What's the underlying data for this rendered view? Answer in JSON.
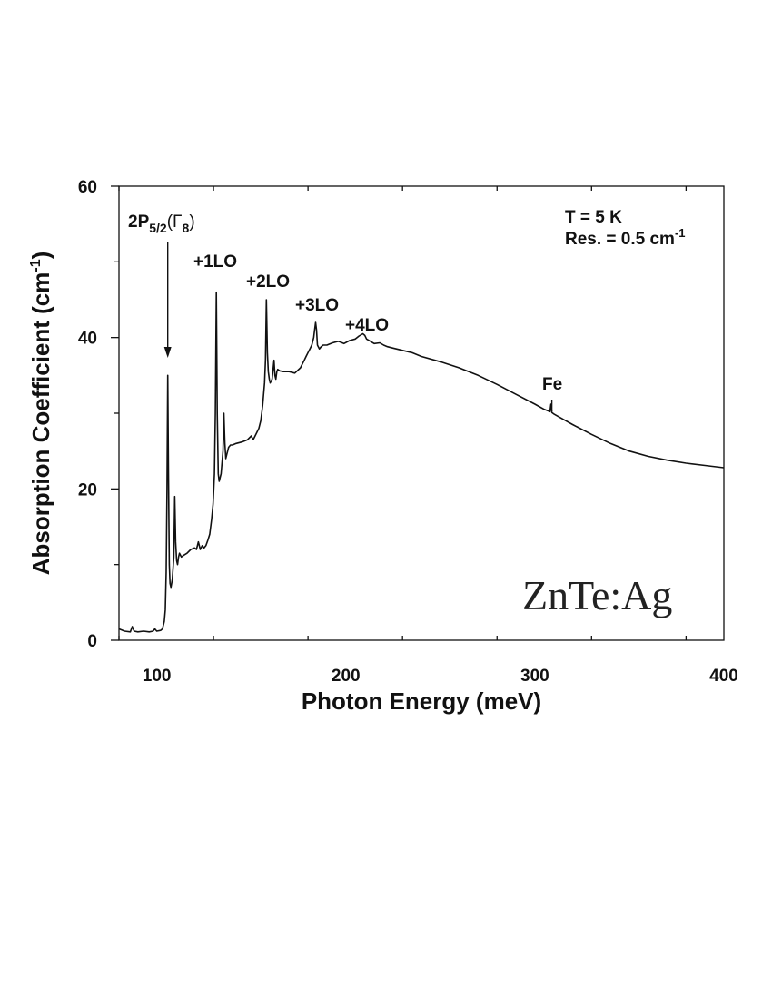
{
  "chart_data": {
    "type": "line",
    "title": "",
    "xlabel": "Photon Energy (meV)",
    "ylabel": "Absorption Coefficient (cm-1)",
    "ylabel_parts": {
      "main": "Absorption Coefficient (cm",
      "sup": "-1",
      "close": ")"
    },
    "xlim": [
      80,
      400
    ],
    "ylim": [
      0,
      60
    ],
    "xticks": [
      100,
      200,
      300,
      400
    ],
    "yticks": [
      0,
      20,
      40,
      60
    ],
    "grid": false,
    "annotations": {
      "conditions_temperature": "T = 5 K",
      "conditions_resolution": {
        "main": "Res. = 0.5 cm",
        "sup": "-1"
      },
      "peak_2p": {
        "base": "2P",
        "sub": "5/2",
        "gamma": "(Γ",
        "gamma_sub": "8",
        "close": ")"
      },
      "lo1": "+1LO",
      "lo2": "+2LO",
      "lo3": "+3LO",
      "lo4": "+4LO",
      "fe": "Fe",
      "sample": "ZnTe:Ag"
    },
    "series": [
      {
        "x": [
          80,
          83,
          86,
          87,
          88,
          90,
          93,
          96,
          98,
          99,
          100,
          102,
          103,
          104,
          104.5,
          105,
          105.4,
          105.8,
          106.2,
          106.6,
          107,
          107.5,
          108.2,
          109,
          109.5,
          110,
          110.5,
          111,
          111.5,
          112,
          113,
          114,
          116,
          118,
          120,
          121,
          122,
          123,
          124,
          125,
          126,
          127,
          128,
          129,
          129.8,
          130.5,
          131,
          131.5,
          132,
          132.5,
          133,
          134,
          135,
          135.5,
          136,
          136.5,
          137,
          138,
          139,
          140,
          142,
          145,
          148,
          150,
          151,
          152,
          154,
          155,
          156,
          157,
          157.5,
          158,
          158.5,
          159,
          159.5,
          160,
          161,
          162,
          162.5,
          163,
          163.5,
          164,
          165,
          167,
          170,
          173,
          176,
          177,
          178,
          179,
          180,
          181,
          182,
          183,
          183.5,
          184,
          184.5,
          185,
          186,
          187,
          188,
          190,
          193,
          196,
          199,
          202,
          205,
          207,
          209,
          210,
          211,
          213,
          215,
          218,
          220,
          222,
          225,
          230,
          235,
          240,
          250,
          260,
          270,
          280,
          290,
          300,
          305,
          308,
          308.5,
          309,
          310,
          315,
          320,
          330,
          340,
          350,
          360,
          370,
          380,
          390,
          400
        ],
        "y": [
          1.5,
          1.2,
          1.1,
          1.8,
          1.2,
          1.1,
          1.2,
          1.1,
          1.2,
          1.5,
          1.2,
          1.3,
          1.5,
          2.5,
          4,
          9,
          20,
          35,
          22,
          10,
          7.5,
          7,
          8,
          11,
          19,
          13,
          10.5,
          10,
          11,
          11.5,
          11,
          11.2,
          11.5,
          12,
          12.2,
          12,
          13,
          12,
          12.5,
          12.2,
          12.5,
          13.2,
          14,
          16,
          18,
          22,
          30,
          46,
          30,
          22,
          21,
          22,
          25,
          30,
          26,
          24,
          24.5,
          25.5,
          25.8,
          25.8,
          26,
          26.2,
          26.5,
          27,
          26.5,
          27,
          28,
          29,
          31,
          34,
          37,
          45,
          38,
          35.5,
          34.5,
          34,
          34.5,
          37,
          35,
          34.5,
          35.5,
          35.8,
          35.6,
          35.5,
          35.5,
          35.3,
          36,
          36.5,
          37,
          37.5,
          38,
          38.5,
          39,
          40,
          41,
          42,
          41,
          39,
          38.5,
          38.8,
          39,
          39,
          39.3,
          39.5,
          39.2,
          39.6,
          39.8,
          40.2,
          40.5,
          40.3,
          39.8,
          39.5,
          39.2,
          39.3,
          39,
          38.8,
          38.6,
          38.3,
          38,
          37.5,
          36.8,
          36,
          35,
          33.8,
          32.5,
          31.2,
          30.5,
          30.2,
          31.2,
          30.1,
          29.9,
          29.2,
          28.5,
          27.2,
          26,
          25,
          24.3,
          23.8,
          23.4,
          23.1,
          22.8
        ]
      }
    ]
  }
}
